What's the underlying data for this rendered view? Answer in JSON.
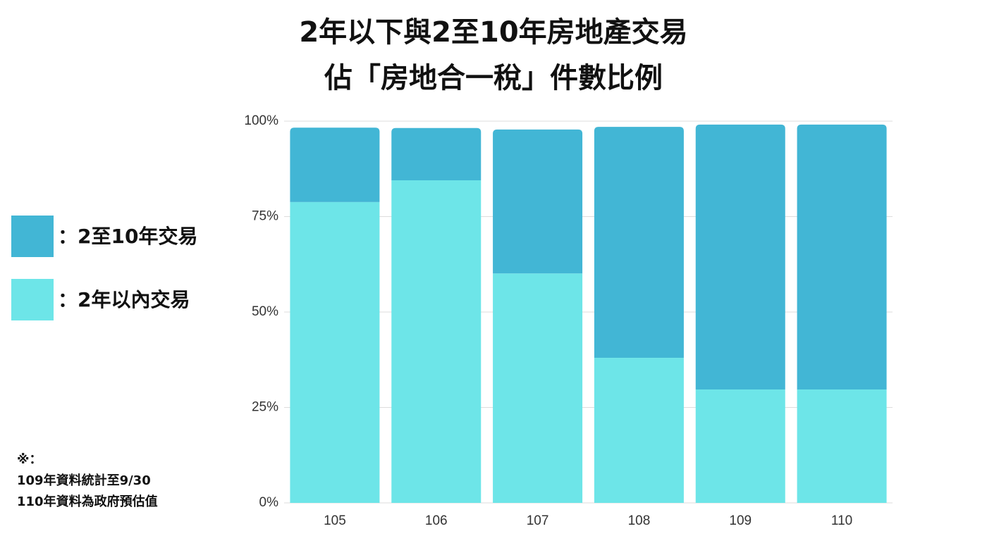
{
  "chart_data": {
    "type": "stacked-bar",
    "title": "2年以下與2至10年房地產交易",
    "subtitle": "佔「房地合一稅」件數比例",
    "categories": [
      "105",
      "106",
      "107",
      "108",
      "109",
      "110"
    ],
    "series": [
      {
        "name": "：2年以內交易",
        "color": "#6de5e8",
        "values": [
          78.8,
          84.5,
          60.1,
          38.0,
          29.7,
          29.7
        ]
      },
      {
        "name": "：2至10年交易",
        "color": "#42b6d5",
        "values": [
          19.5,
          13.7,
          37.7,
          60.5,
          69.4,
          69.4
        ]
      }
    ],
    "ylim": [
      0,
      100
    ],
    "yticks": [
      {
        "value": 0,
        "label": "0%"
      },
      {
        "value": 25,
        "label": "25%"
      },
      {
        "value": 50,
        "label": "50%"
      },
      {
        "value": 75,
        "label": "75%"
      },
      {
        "value": 100,
        "label": "100%"
      }
    ],
    "grid": true,
    "legend": "left",
    "note": [
      "※：",
      "109年資料統計至9/30",
      "110年資料為政府預估值"
    ]
  }
}
